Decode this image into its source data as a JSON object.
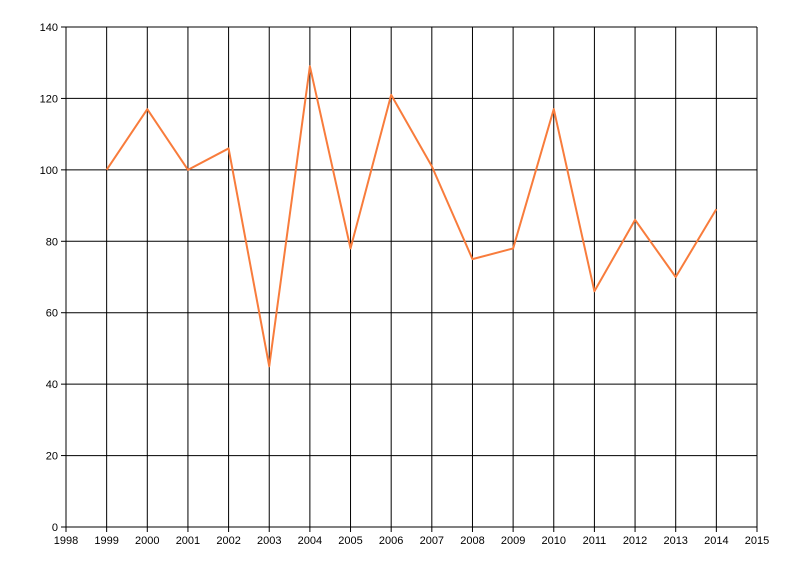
{
  "chart_data": {
    "type": "line",
    "x": [
      1999,
      2000,
      2001,
      2002,
      2003,
      2004,
      2005,
      2006,
      2007,
      2008,
      2009,
      2010,
      2011,
      2012,
      2013,
      2014
    ],
    "series": [
      {
        "color": "#f87c3c",
        "values": [
          100,
          117,
          100,
          106,
          45,
          129,
          78,
          121,
          101,
          75,
          78,
          117,
          66,
          86,
          70,
          89
        ]
      }
    ],
    "xlim": [
      1998,
      2015
    ],
    "xticks": [
      1998,
      1999,
      2000,
      2001,
      2002,
      2003,
      2004,
      2005,
      2006,
      2007,
      2008,
      2009,
      2010,
      2011,
      2012,
      2013,
      2014,
      2015
    ],
    "ylim": [
      0,
      140
    ],
    "yticks": [
      0,
      20,
      40,
      60,
      80,
      100,
      120,
      140
    ],
    "grid": true
  }
}
